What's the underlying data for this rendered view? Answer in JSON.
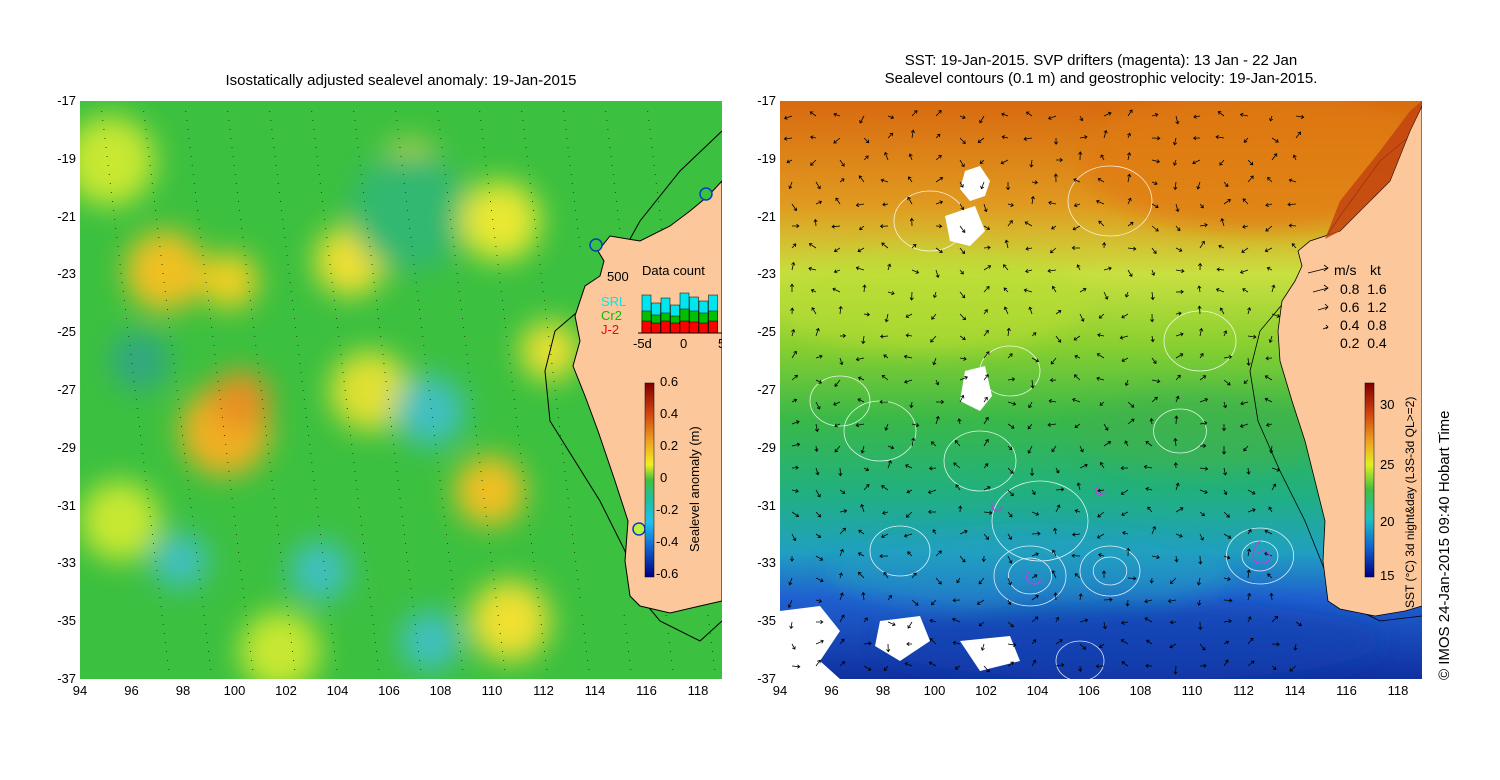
{
  "left_map": {
    "title": "Isostatically adjusted sealevel anomaly: 19-Jan-2015",
    "lat_ticks": [
      "-17",
      "-19",
      "-21",
      "-23",
      "-25",
      "-27",
      "-29",
      "-31",
      "-33",
      "-35",
      "-37"
    ],
    "lon_ticks": [
      "94",
      "96",
      "98",
      "100",
      "102",
      "104",
      "106",
      "108",
      "110",
      "112",
      "114",
      "116",
      "118"
    ],
    "colorbar": {
      "label": "Sealevel anomaly (m)",
      "ticks": [
        "0.6",
        "0.4",
        "0.2",
        "0",
        "-0.2",
        "-0.4",
        "-0.6"
      ]
    },
    "data_count": {
      "title": "Data count",
      "ymax_label": "500",
      "series": [
        {
          "name": "SRL",
          "color": "#00e5ee"
        },
        {
          "name": "Cr2",
          "color": "#00c000"
        },
        {
          "name": "J-2",
          "color": "#ff0000"
        }
      ],
      "x_ticks": [
        "-5d",
        "0",
        "5"
      ]
    }
  },
  "right_map": {
    "title_line1": "SST: 19-Jan-2015. SVP drifters (magenta): 13 Jan - 22 Jan",
    "title_line2": "Sealevel contours (0.1 m) and geostrophic velocity: 19-Jan-2015.",
    "lat_ticks": [
      "-17",
      "-19",
      "-21",
      "-23",
      "-25",
      "-27",
      "-29",
      "-31",
      "-33",
      "-35",
      "-37"
    ],
    "lon_ticks": [
      "94",
      "96",
      "98",
      "100",
      "102",
      "104",
      "106",
      "108",
      "110",
      "112",
      "114",
      "116",
      "118"
    ],
    "velocity_legend": {
      "header_ms": "m/s",
      "header_kt": "kt",
      "rows": [
        {
          "ms": "0.8",
          "kt": "1.6"
        },
        {
          "ms": "0.6",
          "kt": "1.2"
        },
        {
          "ms": "0.4",
          "kt": "0.8"
        },
        {
          "ms": "0.2",
          "kt": "0.4"
        }
      ]
    },
    "colorbar": {
      "label": "SST (°C) 3d night&day (L3S-3d QL>=2)",
      "ticks": [
        "30",
        "25",
        "20",
        "15"
      ]
    }
  },
  "copyright": "© IMOS 24-Jan-2015 09:40 Hobart Time",
  "colors": {
    "land": "#fcc89b",
    "coast": "#000000"
  }
}
